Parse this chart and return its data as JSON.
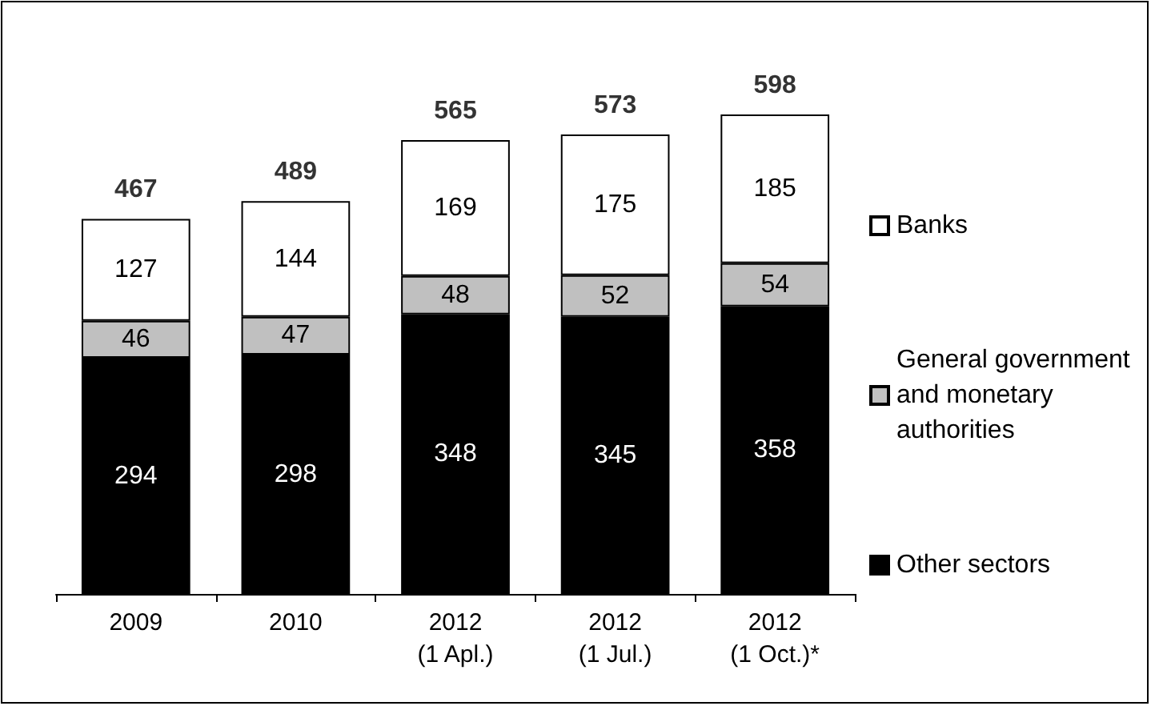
{
  "chart_data": {
    "type": "bar",
    "stacked": true,
    "categories": [
      "2009",
      "2010",
      "2012 (1 Apl.)",
      "2012 (1 Jul.)",
      "2012 (1 Oct.)*"
    ],
    "series": [
      {
        "name": "Other sectors",
        "color": "#000000",
        "values": [
          294,
          298,
          348,
          345,
          358
        ]
      },
      {
        "name": "General government and monetary authorities",
        "color": "#c0c0c0",
        "values": [
          46,
          47,
          48,
          52,
          54
        ]
      },
      {
        "name": "Banks",
        "color": "#ffffff",
        "values": [
          127,
          144,
          169,
          175,
          185
        ]
      }
    ],
    "data_labels": true,
    "totals": [
      "467",
      "489",
      "565",
      "573",
      "598"
    ],
    "legend": "right"
  }
}
